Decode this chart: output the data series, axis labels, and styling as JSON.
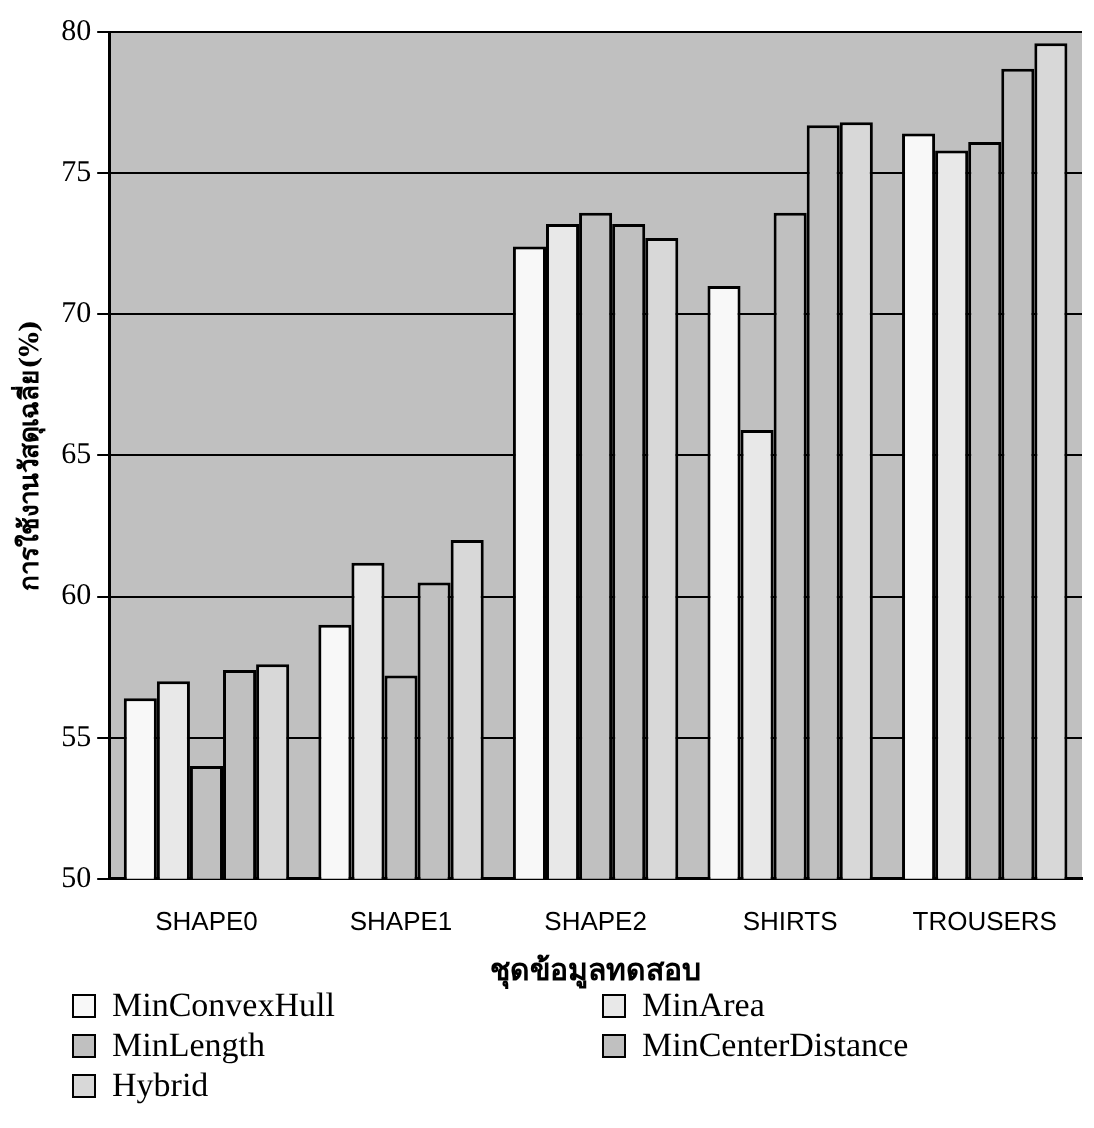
{
  "chart_data": {
    "type": "bar",
    "xlabel": "ชุดข้อมูลทดสอบ",
    "ylabel": "การใช้งานวัสดุเฉลี่ย(%)",
    "categories": [
      "SHAPE0",
      "SHAPE1",
      "SHAPE2",
      "SHIRTS",
      "TROUSERS"
    ],
    "series": [
      {
        "name": "MinConvexHull",
        "color": "#f8f8f8",
        "values": [
          56.4,
          59.0,
          72.4,
          71.0,
          76.4
        ]
      },
      {
        "name": "MinArea",
        "color": "#e8e8e8",
        "values": [
          57.0,
          61.2,
          73.2,
          65.9,
          75.8
        ]
      },
      {
        "name": "MinLength",
        "color": "#c0c0c0",
        "values": [
          54.0,
          57.2,
          73.6,
          73.6,
          76.1
        ]
      },
      {
        "name": "MinCenterDistance",
        "color": "#c0c0c0",
        "values": [
          57.4,
          60.5,
          73.2,
          76.7,
          78.7
        ]
      },
      {
        "name": "Hybrid",
        "color": "#d8d8d8",
        "values": [
          57.6,
          62.0,
          72.7,
          76.8,
          79.6
        ]
      }
    ],
    "ylim": [
      50,
      80
    ],
    "yticks": [
      50,
      55,
      60,
      65,
      70,
      75,
      80
    ],
    "grid": "y",
    "legend": "bottom"
  }
}
